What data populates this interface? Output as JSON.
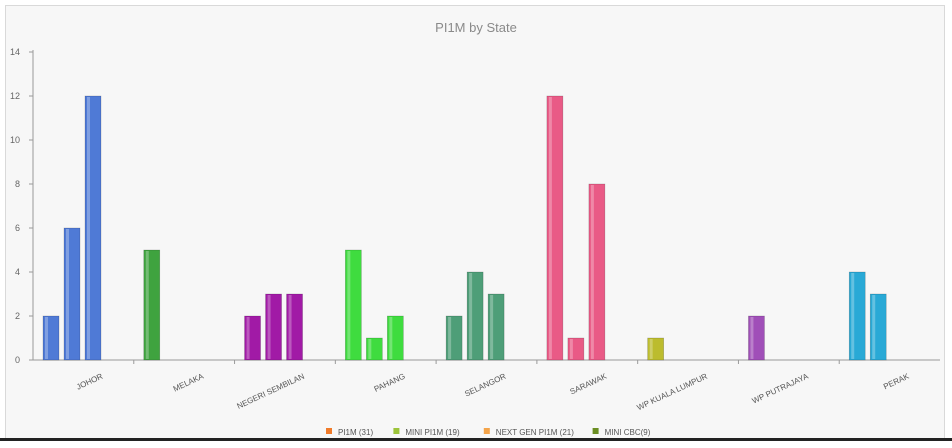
{
  "chart_data": {
    "type": "bar",
    "title": "PI1M by State",
    "ylim": [
      0,
      14
    ],
    "yticks": [
      0,
      2,
      4,
      6,
      8,
      10,
      12,
      14
    ],
    "categories": [
      "JOHOR",
      "MELAKA",
      "NEGERI SEMBILAN",
      "PAHANG",
      "SELANGOR",
      "SARAWAK",
      "WP KUALA LUMPUR",
      "WP PUTRAJAYA",
      "PERAK"
    ],
    "groups": [
      {
        "category": "JOHOR",
        "values": [
          2,
          6,
          12
        ],
        "color": "#4f7ad6"
      },
      {
        "category": "MELAKA",
        "values": [
          5
        ],
        "color": "#3fa33f"
      },
      {
        "category": "NEGERI SEMBILAN",
        "values": [
          2,
          3,
          3
        ],
        "color": "#a11aa6"
      },
      {
        "category": "PAHANG",
        "values": [
          5,
          1,
          2
        ],
        "color": "#3fdc3f"
      },
      {
        "category": "SELANGOR",
        "values": [
          2,
          4,
          3
        ],
        "color": "#4e9e78"
      },
      {
        "category": "SARAWAK",
        "values": [
          12,
          1,
          8
        ],
        "color": "#e95a86"
      },
      {
        "category": "WP KUALA LUMPUR",
        "values": [
          1
        ],
        "color": "#bcbc2e"
      },
      {
        "category": "WP PUTRAJAYA",
        "values": [
          2
        ],
        "color": "#a04fb8"
      },
      {
        "category": "PERAK",
        "values": [
          4,
          3
        ],
        "color": "#29a9d6"
      }
    ],
    "legend": [
      {
        "label": "PI1M (31)",
        "color": "#f07b2a"
      },
      {
        "label": "MINI PI1M (19)",
        "color": "#9cc43a"
      },
      {
        "label": "NEXT GEN PI1M (21)",
        "color": "#f4a44a"
      },
      {
        "label": "MINI CBC(9)",
        "color": "#6b8e23"
      }
    ],
    "legend_position": "bottom-center",
    "grid": false
  }
}
